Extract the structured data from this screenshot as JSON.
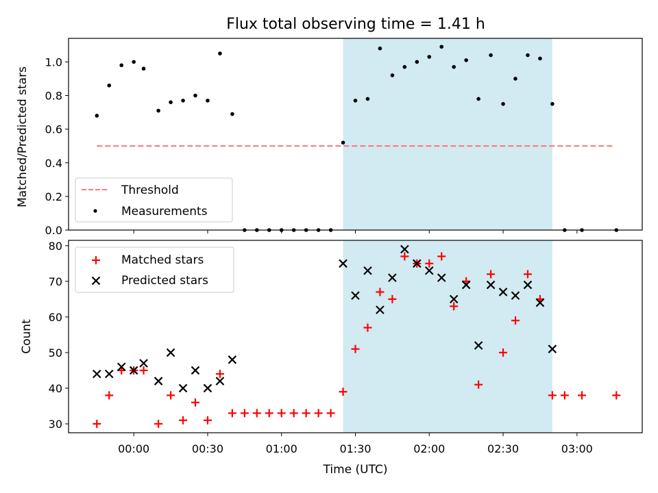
{
  "chart_data": {
    "title": "Flux total observing time = 1.41 h",
    "xlabel": "Time (UTC)",
    "x_unit": "minutes relative to 00:00 UTC",
    "x_ticks": [
      {
        "t": 0,
        "label": "00:00"
      },
      {
        "t": 30,
        "label": "00:30"
      },
      {
        "t": 60,
        "label": "01:00"
      },
      {
        "t": 90,
        "label": "01:30"
      },
      {
        "t": 120,
        "label": "02:00"
      },
      {
        "t": 150,
        "label": "02:30"
      },
      {
        "t": 180,
        "label": "03:00"
      }
    ],
    "xlim": [
      -26.5,
      206.5
    ],
    "shaded_interval": {
      "start": 85,
      "end": 170,
      "color": "#add8e6"
    },
    "panels": [
      {
        "type": "scatter",
        "ylabel": "Matched/Predicted stars",
        "ylim": [
          0,
          1.14
        ],
        "yticks": [
          "0.0",
          "0.2",
          "0.4",
          "0.6",
          "0.8",
          "1.0"
        ],
        "legend_position": "lower-left",
        "threshold": {
          "name": "Threshold",
          "value": 0.5,
          "x_range": [
            -15,
            195
          ],
          "color": "#ff7777"
        },
        "series": [
          {
            "name": "Measurements",
            "marker": "dot",
            "color": "#000000",
            "x": [
              -15,
              -10,
              -5,
              0,
              4,
              10,
              15,
              20,
              25,
              30,
              35,
              40,
              45,
              50,
              55,
              60,
              65,
              70,
              75,
              80,
              85,
              90,
              95,
              100,
              105,
              110,
              115,
              120,
              125,
              130,
              135,
              140,
              145,
              150,
              155,
              160,
              165,
              170,
              175,
              182,
              196
            ],
            "y": [
              0.68,
              0.86,
              0.98,
              1.0,
              0.96,
              0.71,
              0.76,
              0.77,
              0.8,
              0.77,
              1.05,
              0.69,
              0.0,
              0.0,
              0.0,
              0.0,
              0.0,
              0.0,
              0.0,
              0.0,
              0.52,
              0.77,
              0.78,
              1.08,
              0.92,
              0.97,
              1.0,
              1.03,
              1.09,
              0.97,
              1.01,
              0.78,
              1.04,
              0.75,
              0.9,
              1.04,
              1.02,
              0.75,
              0.0,
              0.0,
              0.0
            ]
          }
        ]
      },
      {
        "type": "scatter",
        "ylabel": "Count",
        "ylim": [
          27.5,
          81.5
        ],
        "yticks": [
          "30",
          "40",
          "50",
          "60",
          "70",
          "80"
        ],
        "legend_position": "upper-left",
        "series": [
          {
            "name": "Matched stars",
            "marker": "plus",
            "color": "#ff0000",
            "x": [
              -15,
              -10,
              -5,
              0,
              4,
              10,
              15,
              20,
              25,
              30,
              35,
              40,
              45,
              50,
              55,
              60,
              65,
              70,
              75,
              80,
              85,
              90,
              95,
              100,
              105,
              110,
              115,
              120,
              125,
              130,
              135,
              140,
              145,
              150,
              155,
              160,
              165,
              170,
              175,
              182,
              196
            ],
            "y": [
              30,
              38,
              45,
              45,
              45,
              30,
              38,
              31,
              36,
              31,
              44,
              33,
              33,
              33,
              33,
              33,
              33,
              33,
              33,
              33,
              39,
              51,
              57,
              67,
              65,
              77,
              75,
              75,
              77,
              63,
              70,
              41,
              72,
              50,
              59,
              72,
              65,
              38,
              38,
              38,
              38
            ]
          },
          {
            "name": "Predicted stars",
            "marker": "x",
            "color": "#000000",
            "x": [
              -15,
              -10,
              -5,
              0,
              4,
              10,
              15,
              20,
              25,
              30,
              35,
              40,
              85,
              90,
              95,
              100,
              105,
              110,
              115,
              120,
              125,
              130,
              135,
              140,
              145,
              150,
              155,
              160,
              165,
              170
            ],
            "y": [
              44,
              44,
              46,
              45,
              47,
              42,
              50,
              40,
              45,
              40,
              42,
              48,
              75,
              66,
              73,
              62,
              71,
              79,
              75,
              73,
              71,
              65,
              69,
              52,
              69,
              67,
              66,
              69,
              64,
              51
            ]
          }
        ]
      }
    ]
  }
}
